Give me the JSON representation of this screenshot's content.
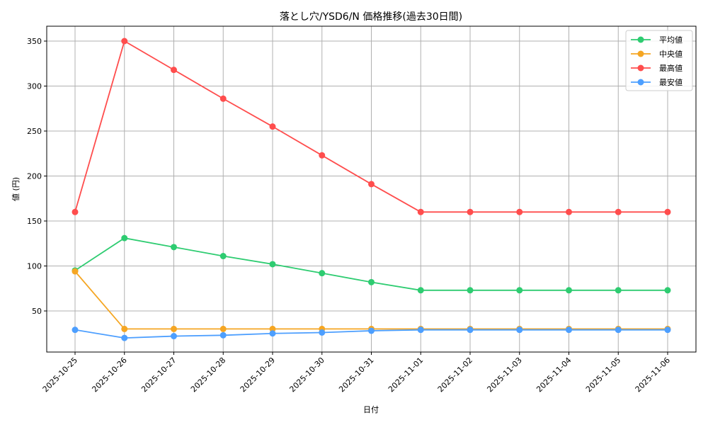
{
  "chart_data": {
    "type": "line",
    "title": "落とし穴/YSD6/N 価格推移(過去30日間)",
    "xlabel": "日付",
    "ylabel": "値 (円)",
    "categories": [
      "2025-10-25",
      "2025-10-26",
      "2025-10-27",
      "2025-10-28",
      "2025-10-29",
      "2025-10-30",
      "2025-10-31",
      "2025-11-01",
      "2025-11-02",
      "2025-11-03",
      "2025-11-04",
      "2025-11-05",
      "2025-11-06"
    ],
    "ylim": [
      0,
      365
    ],
    "yticks": [
      50,
      100,
      150,
      200,
      250,
      300,
      350
    ],
    "grid": true,
    "legend_position": "upper right",
    "series": [
      {
        "name": "平均値",
        "color": "#2ecc71",
        "values": [
          95,
          131,
          121,
          111,
          102,
          92,
          82,
          73,
          73,
          73,
          73,
          73,
          73
        ]
      },
      {
        "name": "中央値",
        "color": "#f5a623",
        "values": [
          94,
          30,
          30,
          30,
          30,
          30,
          30,
          30,
          30,
          30,
          30,
          30,
          30
        ]
      },
      {
        "name": "最高値",
        "color": "#ff4d4d",
        "values": [
          160,
          350,
          318,
          286,
          255,
          223,
          191,
          160,
          160,
          160,
          160,
          160,
          160
        ]
      },
      {
        "name": "最安値",
        "color": "#4d9fff",
        "values": [
          29,
          20,
          22,
          23,
          25,
          26,
          28,
          29,
          29,
          29,
          29,
          29,
          29
        ]
      }
    ]
  }
}
